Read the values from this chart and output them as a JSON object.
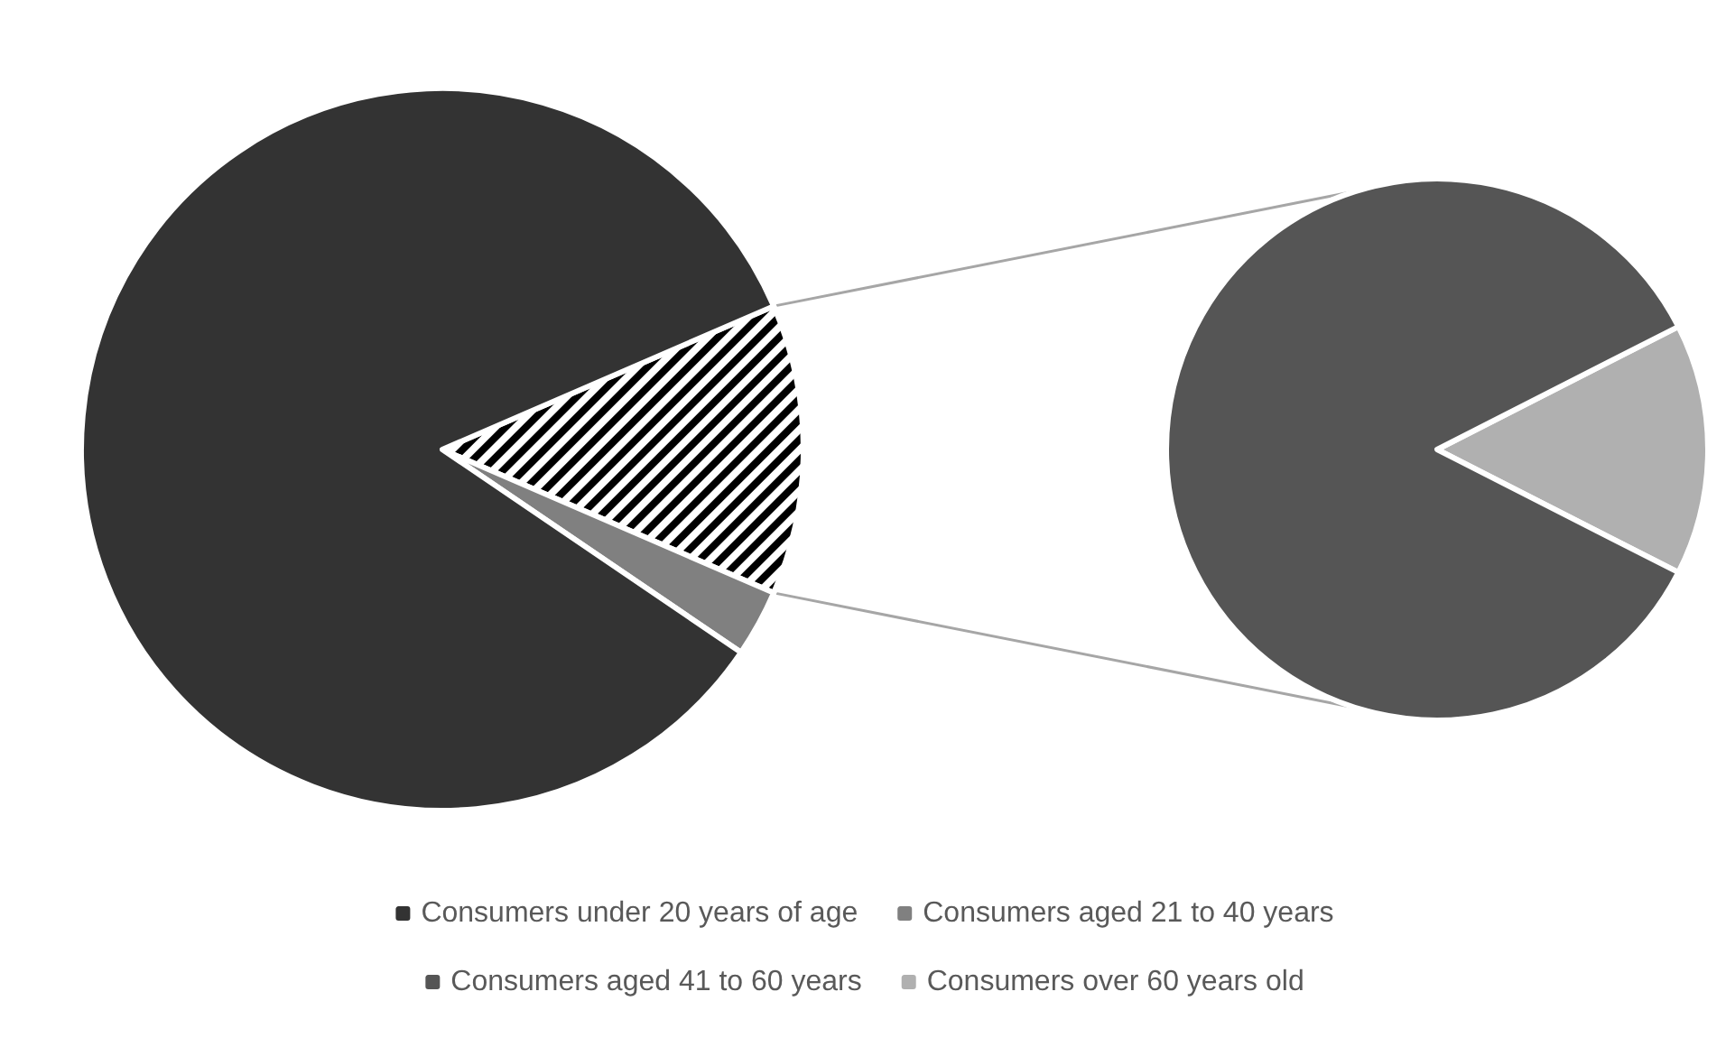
{
  "chart_data": [
    {
      "type": "pie",
      "categories": [
        "Consumers under 20 years of age",
        "Consumers aged 21 to 40 years",
        null
      ],
      "values": [
        84,
        3,
        13
      ],
      "colors": [
        "#333333",
        "#808080",
        "#ffffff"
      ],
      "legend": "bottom"
    },
    {
      "type": "pie",
      "categories": [
        "Consumers aged 41 to 60 years",
        "Consumers over 60 years old"
      ],
      "values": [
        85,
        15
      ],
      "colors": [
        "#555555",
        "#b0b0b0"
      ],
      "legend": "bottom"
    }
  ]
}
